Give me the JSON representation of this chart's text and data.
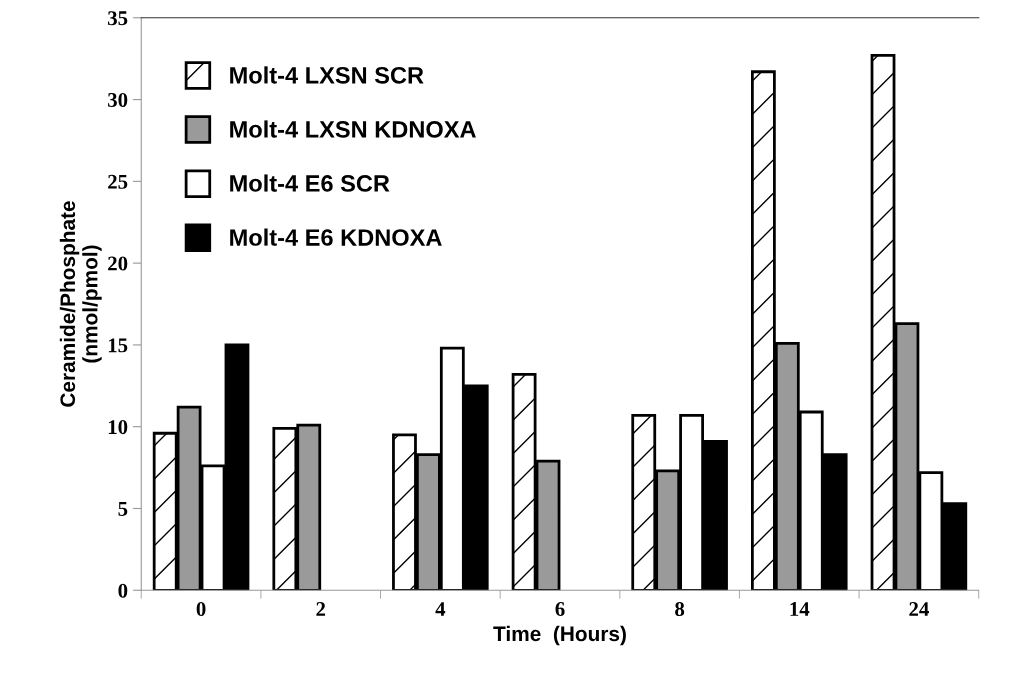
{
  "chart_data": {
    "type": "bar",
    "xlabel": "Time  (Hours)",
    "ylabel": "Ceramide/Phosphate\n(nmol/pmol)",
    "categories": [
      "0",
      "2",
      "4",
      "6",
      "8",
      "14",
      "24"
    ],
    "series": [
      {
        "name": "Molt-4 LXSN SCR",
        "color": "#000000",
        "values": [
          9.6,
          9.9,
          9.5,
          13.2,
          10.7,
          31.7,
          32.7
        ]
      },
      {
        "name": "Molt-4 LXSN KDNOXA",
        "color": "#9a9a9a",
        "values": [
          11.2,
          10.1,
          8.3,
          7.9,
          7.3,
          15.1,
          16.3
        ]
      },
      {
        "name": "Molt-4 E6 SCR",
        "color": "#ffffff",
        "values": [
          7.6,
          null,
          14.8,
          null,
          10.7,
          10.9,
          7.2
        ]
      },
      {
        "name": "Molt-4 E6 KDNOXA",
        "color": "#000000",
        "values": [
          15.0,
          null,
          12.5,
          null,
          9.1,
          8.3,
          5.3
        ]
      }
    ],
    "ylim": [
      0,
      35
    ],
    "yticks": [
      0,
      5,
      10,
      15,
      20,
      25,
      30,
      35
    ],
    "grid": false,
    "legend": "top left"
  }
}
